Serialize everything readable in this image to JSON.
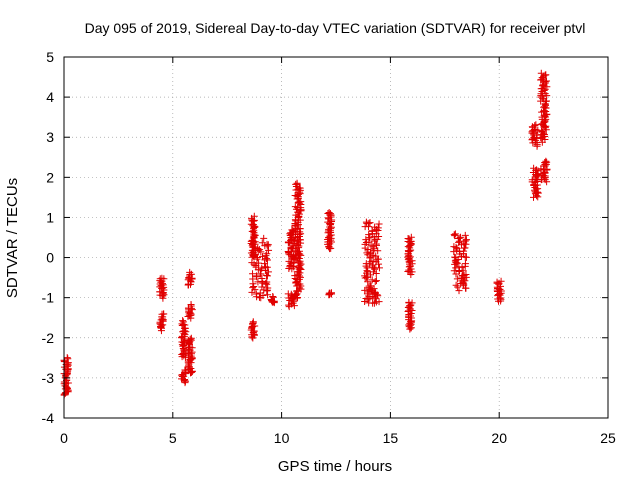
{
  "chart_data": {
    "type": "scatter",
    "title": "Day 095 of 2019, Sidereal Day-to-day VTEC variation (SDTVAR) for receiver ptvl",
    "xlabel": "GPS time / hours",
    "ylabel": "SDTVAR / TECUs",
    "xlim": [
      0,
      25
    ],
    "ylim": [
      -4,
      5
    ],
    "xticks": [
      0,
      5,
      10,
      15,
      20,
      25
    ],
    "yticks": [
      -4,
      -3,
      -2,
      -1,
      0,
      1,
      2,
      3,
      4,
      5
    ],
    "grid": true,
    "marker": "+",
    "colors": {
      "points": "#e00000",
      "grid": "#a0a0a0",
      "axis": "#000000"
    },
    "series": [
      {
        "name": "SDTVAR",
        "clusters": [
          {
            "x": [
              0.0,
              0.2
            ],
            "y": [
              -2.5,
              -3.3
            ]
          },
          {
            "x": [
              0.0,
              0.2
            ],
            "y": [
              -3.4,
              -3.3
            ]
          },
          {
            "x": [
              4.4,
              4.6
            ],
            "y": [
              -0.5,
              -1.0
            ]
          },
          {
            "x": [
              4.4,
              4.6
            ],
            "y": [
              -1.4,
              -1.8
            ]
          },
          {
            "x": [
              5.4,
              5.6
            ],
            "y": [
              -1.6,
              -2.5
            ]
          },
          {
            "x": [
              5.4,
              5.6
            ],
            "y": [
              -2.8,
              -3.1
            ]
          },
          {
            "x": [
              5.7,
              5.9
            ],
            "y": [
              -0.4,
              -0.7
            ]
          },
          {
            "x": [
              5.7,
              5.9
            ],
            "y": [
              -1.2,
              -1.5
            ]
          },
          {
            "x": [
              5.7,
              5.9
            ],
            "y": [
              -2.0,
              -2.9
            ]
          },
          {
            "x": [
              8.6,
              8.8
            ],
            "y": [
              0.0,
              1.0
            ]
          },
          {
            "x": [
              8.6,
              8.8
            ],
            "y": [
              -1.6,
              -2.0
            ]
          },
          {
            "x": [
              8.6,
              9.4
            ],
            "y": [
              0.45,
              -1.0
            ]
          },
          {
            "x": [
              9.5,
              9.7
            ],
            "y": [
              -1.0,
              -1.15
            ]
          },
          {
            "x": [
              10.3,
              10.6
            ],
            "y": [
              -0.9,
              -1.2
            ]
          },
          {
            "x": [
              10.3,
              10.6
            ],
            "y": [
              0.7,
              -0.3
            ]
          },
          {
            "x": [
              10.6,
              10.9
            ],
            "y": [
              1.85,
              -1.0
            ]
          },
          {
            "x": [
              12.1,
              12.3
            ],
            "y": [
              1.15,
              0.2
            ]
          },
          {
            "x": [
              12.1,
              12.3
            ],
            "y": [
              -0.9,
              -0.9
            ]
          },
          {
            "x": [
              13.8,
              14.5
            ],
            "y": [
              0.9,
              -0.6
            ]
          },
          {
            "x": [
              13.8,
              14.5
            ],
            "y": [
              -0.7,
              -1.15
            ]
          },
          {
            "x": [
              15.8,
              16.0
            ],
            "y": [
              0.5,
              -0.4
            ]
          },
          {
            "x": [
              15.8,
              16.0
            ],
            "y": [
              -1.1,
              -1.8
            ]
          },
          {
            "x": [
              17.9,
              18.5
            ],
            "y": [
              0.6,
              -0.8
            ]
          },
          {
            "x": [
              19.9,
              20.1
            ],
            "y": [
              -0.6,
              -1.1
            ]
          },
          {
            "x": [
              21.5,
              21.8
            ],
            "y": [
              3.3,
              2.8
            ]
          },
          {
            "x": [
              21.5,
              21.8
            ],
            "y": [
              2.2,
              1.5
            ]
          },
          {
            "x": [
              21.9,
              22.2
            ],
            "y": [
              4.6,
              2.9
            ]
          },
          {
            "x": [
              21.9,
              22.2
            ],
            "y": [
              2.4,
              1.9
            ]
          }
        ]
      }
    ]
  }
}
